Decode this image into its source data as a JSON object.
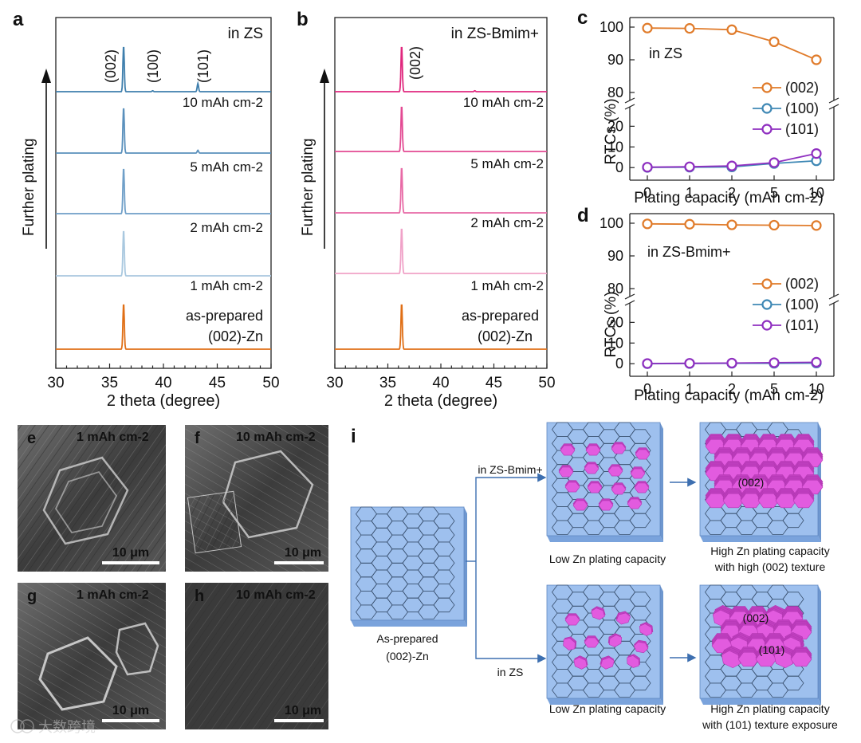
{
  "panels": {
    "a": {
      "letter": "a",
      "condition": "in ZS",
      "peak_labels": [
        "(002)",
        "(100)",
        "(101)"
      ],
      "trace_labels": [
        "10 mAh cm-2",
        "5 mAh cm-2",
        "2 mAh cm-2",
        "1 mAh cm-2"
      ],
      "bottom_label_1": "as-prepared",
      "bottom_label_2": "(002)-Zn",
      "arrow_label": "Further plating",
      "xlabel": "2 theta (degree)",
      "xticks": [
        "30",
        "35",
        "40",
        "45",
        "50"
      ]
    },
    "b": {
      "letter": "b",
      "condition": "in ZS-Bmim+",
      "peak_labels": [
        "(002)"
      ],
      "trace_labels": [
        "10 mAh cm-2",
        "5 mAh cm-2",
        "2 mAh cm-2",
        "1 mAh cm-2"
      ],
      "bottom_label_1": "as-prepared",
      "bottom_label_2": "(002)-Zn",
      "arrow_label": "Further plating",
      "xlabel": "2 theta (degree)",
      "xticks": [
        "30",
        "35",
        "40",
        "45",
        "50"
      ]
    },
    "c": {
      "letter": "c",
      "condition": "in ZS",
      "ylabel": "RTCs (%)",
      "xlabel": "Plating capacity (mAh cm-2)"
    },
    "d": {
      "letter": "d",
      "condition": "in ZS-Bmim+",
      "ylabel": "RTCs (%)",
      "xlabel": "Plating capacity (mAh cm-2)"
    },
    "sem": [
      {
        "letter": "e",
        "caption": "1 mAh cm-2",
        "scale": "10 μm"
      },
      {
        "letter": "f",
        "caption": "10 mAh cm-2",
        "scale": "10 μm"
      },
      {
        "letter": "g",
        "caption": "1 mAh cm-2",
        "scale": "10 μm"
      },
      {
        "letter": "h",
        "caption": "10 mAh cm-2",
        "scale": "10 μm"
      }
    ],
    "i": {
      "letter": "i",
      "start_label_1": "As-prepared",
      "start_label_2": "(002)-Zn",
      "branch_top": "in ZS-Bmim+",
      "branch_bottom": "in ZS",
      "top_low": "Low Zn plating capacity",
      "top_high_1": "High Zn plating capacity",
      "top_high_2": "with high (002) texture",
      "top_high_tag": "(002)",
      "bottom_low": "Low Zn plating capacity",
      "bottom_high_1": "High Zn plating capacity",
      "bottom_high_2": "with (101) texture exposure",
      "bottom_tag_002": "(002)",
      "bottom_tag_101": "(101)"
    }
  },
  "watermark": "大数跨境",
  "colors": {
    "zs_traces": [
      "#3f7fad",
      "#5a90bc",
      "#6f9fc8",
      "#a9c8df"
    ],
    "bmim_traces": [
      "#e0287e",
      "#e34a93",
      "#e86aa6",
      "#f0a2c8"
    ],
    "base_trace": "#e06f16",
    "c002": "#e07b2a",
    "c100": "#3f88b5",
    "c101": "#8f2fc0",
    "hex_face": "#9ec0ee",
    "hex_side": "#7aa3dc",
    "magenta": "#e25bdf"
  },
  "chart_data": [
    {
      "id": "c",
      "type": "line",
      "title": "in ZS",
      "xlabel": "Plating capacity (mAh cm-2)",
      "ylabel": "RTCs (%)",
      "categories": [
        "0",
        "1",
        "2",
        "5",
        "10"
      ],
      "y_segments": {
        "upper": [
          80,
          100
        ],
        "lower": [
          -3,
          24
        ]
      },
      "upper_ticks": [
        "80",
        "90",
        "100"
      ],
      "lower_ticks": [
        "0",
        "10",
        "20"
      ],
      "series": [
        {
          "name": "(002)",
          "values": [
            99.7,
            99.6,
            99.2,
            95.5,
            90.0
          ]
        },
        {
          "name": "(100)",
          "values": [
            0.1,
            0.2,
            0.3,
            2.0,
            3.3
          ]
        },
        {
          "name": "(101)",
          "values": [
            0.2,
            0.4,
            0.8,
            2.4,
            6.8
          ]
        }
      ]
    },
    {
      "id": "d",
      "type": "line",
      "title": "in ZS-Bmim+",
      "xlabel": "Plating capacity (mAh cm-2)",
      "ylabel": "RTCs (%)",
      "categories": [
        "0",
        "1",
        "2",
        "5",
        "10"
      ],
      "y_segments": {
        "upper": [
          80,
          100
        ],
        "lower": [
          -3,
          24
        ]
      },
      "upper_ticks": [
        "80",
        "90",
        "100"
      ],
      "lower_ticks": [
        "0",
        "10",
        "20"
      ],
      "series": [
        {
          "name": "(002)",
          "values": [
            99.8,
            99.7,
            99.5,
            99.4,
            99.3
          ]
        },
        {
          "name": "(100)",
          "values": [
            0.0,
            0.1,
            0.2,
            0.2,
            0.3
          ]
        },
        {
          "name": "(101)",
          "values": [
            0.1,
            0.2,
            0.3,
            0.5,
            0.7
          ]
        }
      ]
    },
    {
      "id": "a",
      "type": "line",
      "title": "in ZS",
      "xlabel": "2 theta (degree)",
      "xlim": [
        30,
        50
      ],
      "series": [
        {
          "name": "10 mAh cm-2",
          "peaks": [
            [
              36.3,
              1.0
            ],
            [
              43.2,
              0.18
            ],
            [
              39.0,
              0.02
            ]
          ]
        },
        {
          "name": "5 mAh cm-2",
          "peaks": [
            [
              36.3,
              1.0
            ],
            [
              43.2,
              0.06
            ]
          ]
        },
        {
          "name": "2 mAh cm-2",
          "peaks": [
            [
              36.3,
              1.0
            ]
          ]
        },
        {
          "name": "1 mAh cm-2",
          "peaks": [
            [
              36.3,
              1.0
            ]
          ]
        },
        {
          "name": "as-prepared (002)-Zn",
          "peaks": [
            [
              36.3,
              1.0
            ]
          ]
        }
      ]
    },
    {
      "id": "b",
      "type": "line",
      "title": "in ZS-Bmim+",
      "xlabel": "2 theta (degree)",
      "xlim": [
        30,
        50
      ],
      "series": [
        {
          "name": "10 mAh cm-2",
          "peaks": [
            [
              36.3,
              1.0
            ],
            [
              43.2,
              0.02
            ]
          ]
        },
        {
          "name": "5 mAh cm-2",
          "peaks": [
            [
              36.3,
              1.0
            ]
          ]
        },
        {
          "name": "2 mAh cm-2",
          "peaks": [
            [
              36.3,
              1.0
            ]
          ]
        },
        {
          "name": "1 mAh cm-2",
          "peaks": [
            [
              36.3,
              1.0
            ]
          ]
        },
        {
          "name": "as-prepared (002)-Zn",
          "peaks": [
            [
              36.3,
              1.0
            ]
          ]
        }
      ]
    }
  ]
}
